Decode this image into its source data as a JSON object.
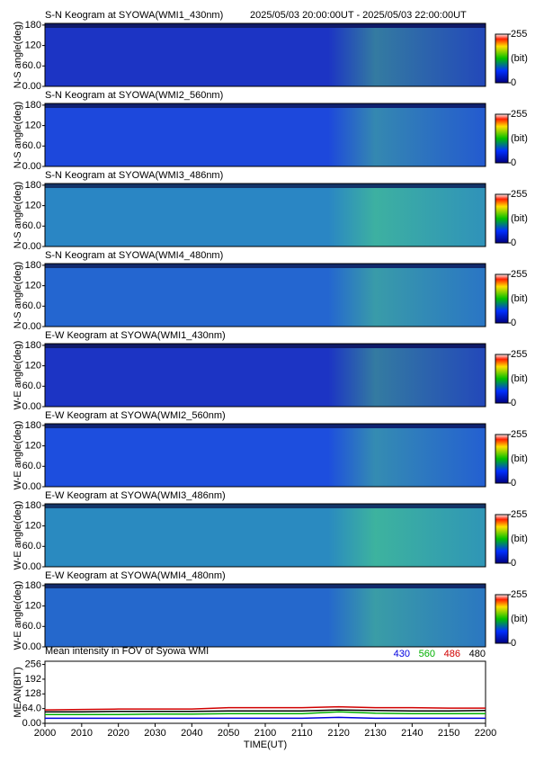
{
  "chart_data": [
    {
      "type": "keogram",
      "title": "S-N Keogram at SYOWA(WMI1_430nm)",
      "subtitle": "2025/05/03 20:00:00UT - 2025/05/03 22:00:00UT",
      "ylabel": "N-S angle(deg)",
      "ylim": [
        0,
        185
      ],
      "yticks": [
        {
          "value": 0,
          "label": "0.00"
        },
        {
          "value": 60,
          "label": "60.0"
        },
        120,
        180
      ],
      "color": "#1c34c4",
      "colorbar": {
        "label": "(bit)",
        "lim": [
          0,
          255
        ],
        "ticks": [
          0,
          255
        ]
      }
    },
    {
      "type": "keogram",
      "title": "S-N Keogram at SYOWA(WMI2_560nm)",
      "ylabel": "N-S angle(deg)",
      "ylim": [
        0,
        185
      ],
      "yticks": [
        {
          "value": 0,
          "label": "0.00"
        },
        {
          "value": 60,
          "label": "60.0"
        },
        120,
        180
      ],
      "color": "#1d48dc",
      "colorbar": {
        "label": "(bit)",
        "lim": [
          0,
          255
        ],
        "ticks": [
          0,
          255
        ]
      }
    },
    {
      "type": "keogram",
      "title": "S-N Keogram at SYOWA(WMI3_486nm)",
      "ylabel": "N-S angle(deg)",
      "ylim": [
        0,
        185
      ],
      "yticks": [
        {
          "value": 0,
          "label": "0.00"
        },
        {
          "value": 60,
          "label": "60.0"
        },
        120,
        180
      ],
      "color": "#2a86c4",
      "colorbar": {
        "label": "(bit)",
        "lim": [
          0,
          255
        ],
        "ticks": [
          0,
          255
        ]
      }
    },
    {
      "type": "keogram",
      "title": "S-N Keogram at SYOWA(WMI4_480nm)",
      "ylabel": "N-S angle(deg)",
      "ylim": [
        0,
        185
      ],
      "yticks": [
        {
          "value": 0,
          "label": "0.00"
        },
        {
          "value": 60,
          "label": "60.0"
        },
        120,
        180
      ],
      "color": "#2466d0",
      "colorbar": {
        "label": "(bit)",
        "lim": [
          0,
          255
        ],
        "ticks": [
          0,
          255
        ]
      }
    },
    {
      "type": "keogram",
      "title": "E-W Keogram at SYOWA(WMI1_430nm)",
      "ylabel": "W-E angle(deg)",
      "ylim": [
        0,
        185
      ],
      "yticks": [
        {
          "value": 0,
          "label": "0.00"
        },
        {
          "value": 60,
          "label": "60.0"
        },
        120,
        180
      ],
      "color": "#1c34c4",
      "colorbar": {
        "label": "(bit)",
        "lim": [
          0,
          255
        ],
        "ticks": [
          0,
          255
        ]
      }
    },
    {
      "type": "keogram",
      "title": "E-W Keogram at SYOWA(WMI2_560nm)",
      "ylabel": "W-E angle(deg)",
      "ylim": [
        0,
        185
      ],
      "yticks": [
        {
          "value": 0,
          "label": "0.00"
        },
        {
          "value": 60,
          "label": "60.0"
        },
        120,
        180
      ],
      "color": "#1d4ede",
      "colorbar": {
        "label": "(bit)",
        "lim": [
          0,
          255
        ],
        "ticks": [
          0,
          255
        ]
      }
    },
    {
      "type": "keogram",
      "title": "E-W Keogram at SYOWA(WMI3_486nm)",
      "ylabel": "W-E angle(deg)",
      "ylim": [
        0,
        185
      ],
      "yticks": [
        {
          "value": 0,
          "label": "0.00"
        },
        {
          "value": 60,
          "label": "60.0"
        },
        120,
        180
      ],
      "color": "#2a8ac0",
      "colorbar": {
        "label": "(bit)",
        "lim": [
          0,
          255
        ],
        "ticks": [
          0,
          255
        ]
      }
    },
    {
      "type": "keogram",
      "title": "E-W Keogram at SYOWA(WMI4_480nm)",
      "ylabel": "W-E angle(deg)",
      "ylim": [
        0,
        185
      ],
      "yticks": [
        {
          "value": 0,
          "label": "0.00"
        },
        {
          "value": 60,
          "label": "60.0"
        },
        120,
        180
      ],
      "color": "#2568cc",
      "colorbar": {
        "label": "(bit)",
        "lim": [
          0,
          255
        ],
        "ticks": [
          0,
          255
        ]
      }
    },
    {
      "type": "line",
      "title": "Mean intensity in FOV of Syowa WMI",
      "ylabel": "MEAN(BIT)",
      "xlabel": "TIME(UT)",
      "categories": [
        "2000",
        "2010",
        "2020",
        "2030",
        "2040",
        "2050",
        "2100",
        "2110",
        "2120",
        "2130",
        "2140",
        "2150",
        "2200"
      ],
      "ylim": [
        0,
        270
      ],
      "yticks": [
        {
          "value": 0,
          "label": "0.00"
        },
        {
          "value": 64,
          "label": "64.0"
        },
        128,
        192,
        256
      ],
      "legend": "top-right",
      "series": [
        {
          "name": "430",
          "color": "#0000e0",
          "values": [
            22,
            22,
            22,
            22,
            22,
            22,
            22,
            22,
            26,
            22,
            22,
            22,
            22
          ]
        },
        {
          "name": "560",
          "color": "#00b000",
          "values": [
            38,
            38,
            38,
            40,
            40,
            42,
            42,
            42,
            50,
            44,
            42,
            42,
            42
          ]
        },
        {
          "name": "486",
          "color": "#d00000",
          "values": [
            58,
            60,
            62,
            62,
            62,
            68,
            68,
            68,
            72,
            68,
            68,
            66,
            66
          ]
        },
        {
          "name": "480",
          "color": "#000000",
          "values": [
            50,
            50,
            52,
            52,
            52,
            54,
            54,
            54,
            58,
            56,
            54,
            54,
            56
          ]
        }
      ]
    }
  ]
}
